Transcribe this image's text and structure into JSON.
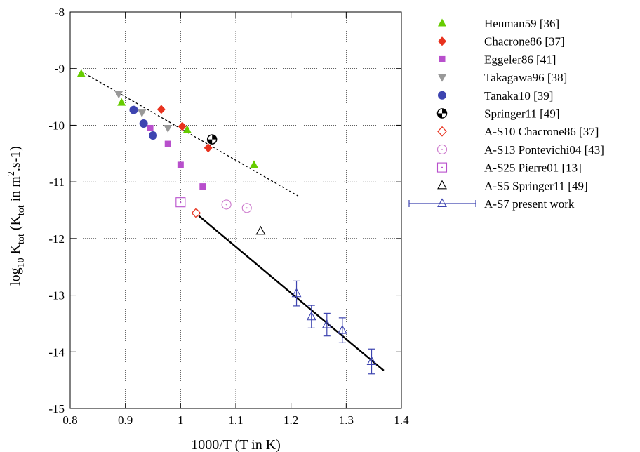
{
  "chart_data": {
    "type": "scatter",
    "title": "",
    "xlabel": "1000/T (T in K)",
    "ylabel": {
      "base": "log",
      "base_sub": "10",
      "k": " K",
      "k_sub": "tot",
      "paren_open": " (K",
      "paren_sub": "tot",
      "in": " in m",
      "sup": "2",
      "tail": ".s-1)"
    },
    "xlim": [
      0.8,
      1.4
    ],
    "ylim": [
      -15,
      -8
    ],
    "x_ticks": [
      0.8,
      0.9,
      1.0,
      1.1,
      1.2,
      1.3,
      1.4
    ],
    "x_tick_labels": [
      "0.8",
      "0.9",
      "1",
      "1.1",
      "1.2",
      "1.3",
      "1.4"
    ],
    "y_ticks": [
      -8,
      -9,
      -10,
      -11,
      -12,
      -13,
      -14,
      -15
    ],
    "y_tick_labels": [
      "-8",
      "-9",
      "-10",
      "-11",
      "-12",
      "-13",
      "-14",
      "-15"
    ],
    "grid": true,
    "legend_position": "right",
    "series": [
      {
        "name": "Heuman59 [36]",
        "marker": "triangle-filled",
        "color": "#66cc00",
        "x": [
          0.82,
          0.893,
          1.012,
          1.133
        ],
        "y": [
          -9.09,
          -9.6,
          -10.08,
          -10.7
        ]
      },
      {
        "name": "Chacrone86 [37]",
        "marker": "diamond-filled",
        "color": "#e8321e",
        "x": [
          0.965,
          1.003,
          1.05
        ],
        "y": [
          -9.72,
          -10.02,
          -10.4
        ]
      },
      {
        "name": "Eggeler86 [41]",
        "marker": "square-filled",
        "color": "#b84fcc",
        "x": [
          0.945,
          0.977,
          1.0,
          1.04
        ],
        "y": [
          -10.05,
          -10.33,
          -10.7,
          -11.08
        ]
      },
      {
        "name": "Takagawa96 [38]",
        "marker": "triangle-down-filled",
        "color": "#999999",
        "x": [
          0.888,
          0.93,
          0.977
        ],
        "y": [
          -9.45,
          -9.78,
          -10.05
        ]
      },
      {
        "name": "Tanaka10 [39]",
        "marker": "circle-filled",
        "color": "#3d44b0",
        "x": [
          0.915,
          0.933,
          0.95
        ],
        "y": [
          -9.73,
          -9.97,
          -10.18
        ]
      },
      {
        "name": "Springer11 [49]",
        "marker": "circle-quartered",
        "color": "#000000",
        "x": [
          1.057
        ],
        "y": [
          -10.25
        ]
      },
      {
        "name": "A-S10 Chacrone86 [37]",
        "marker": "diamond-open",
        "color": "#e8321e",
        "x": [
          1.028
        ],
        "y": [
          -11.55
        ]
      },
      {
        "name": "A-S13 Pontevichi04 [43]",
        "marker": "circle-dot-open",
        "color": "#cc77cc",
        "x": [
          1.083,
          1.12
        ],
        "y": [
          -11.4,
          -11.46
        ]
      },
      {
        "name": "A-S25 Pierre01 [13]",
        "marker": "square-dot-open",
        "color": "#b84fcc",
        "x": [
          1.0
        ],
        "y": [
          -11.36
        ]
      },
      {
        "name": "A-S5 Springer11 [49]",
        "marker": "triangle-open",
        "color": "#000000",
        "x": [
          1.145
        ],
        "y": [
          -11.87
        ]
      },
      {
        "name": "A-S7 present work",
        "marker": "triangle-open-errorbar",
        "color": "#3d44b0",
        "x": [
          1.21,
          1.237,
          1.265,
          1.293,
          1.346
        ],
        "y": [
          -12.97,
          -13.38,
          -13.52,
          -13.62,
          -14.17
        ],
        "err": [
          0.22,
          0.2,
          0.2,
          0.22,
          0.22
        ]
      }
    ],
    "fit_lines": [
      {
        "style": "dotted",
        "color": "#000000",
        "x": [
          0.82,
          1.213
        ],
        "y": [
          -9.05,
          -11.25
        ]
      },
      {
        "style": "solid",
        "color": "#000000",
        "x": [
          1.033,
          1.368
        ],
        "y": [
          -11.6,
          -14.33
        ]
      }
    ]
  }
}
